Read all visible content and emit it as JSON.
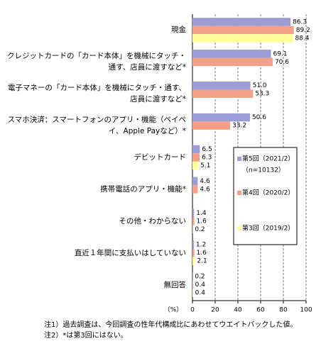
{
  "chart_data": {
    "type": "bar",
    "orientation": "horizontal",
    "x_label": "（%）",
    "categories": [
      "現金",
      "クレジットカードの「カード本体」を機械にタッチ・通す、店員に渡すなど*",
      "電子マネーの「カード本体」を機械にタッチ・通す、店員に渡すなど*",
      "スマホ決済：スマートフォンのアプリ・機能（ペイペイ、Apple Payなど）*",
      "デビットカード",
      "携帯電話のアプリ・機能*",
      "その他・わからない",
      "直近１年間に支払いはしていない",
      "無回答"
    ],
    "series": [
      {
        "name": "第5回（2021/2）",
        "name_note": "（n=10132）",
        "color": "#9c9cd6",
        "values": [
          86.3,
          69.1,
          51.0,
          50.6,
          6.5,
          4.6,
          1.4,
          1.2,
          0.2
        ],
        "value_labels": [
          "86.3",
          "69.1",
          "51.0",
          "50.6",
          "6.5",
          "4.6",
          "1.4",
          "1.2",
          "0.2"
        ]
      },
      {
        "name": "第4回（2020/2）",
        "color": "#f4a088",
        "values": [
          89.2,
          70.6,
          53.3,
          33.2,
          6.3,
          4.6,
          1.6,
          1.6,
          0.4
        ],
        "value_labels": [
          "89.2",
          "70.6",
          "53.3",
          "33.2",
          "6.3",
          "4.6",
          "1.6",
          "1.6",
          "0.4"
        ]
      },
      {
        "name": "第3回（2019/2）",
        "color": "#ffff99",
        "values": [
          88.4,
          null,
          null,
          null,
          5.1,
          null,
          0.2,
          2.1,
          0.4
        ],
        "value_labels": [
          "88.4",
          null,
          null,
          null,
          "5.1",
          null,
          "0.2",
          "2.1",
          "0.4"
        ]
      }
    ],
    "xlim": [
      0,
      100
    ],
    "xticks": [
      0,
      20,
      40,
      60,
      80,
      100
    ],
    "grid": true,
    "legend": "right",
    "notes": [
      "注1）過去調査は、今回調査の性年代構成比にあわせてウエイトバックした値。",
      "注2）*は第3回にはない。"
    ]
  }
}
